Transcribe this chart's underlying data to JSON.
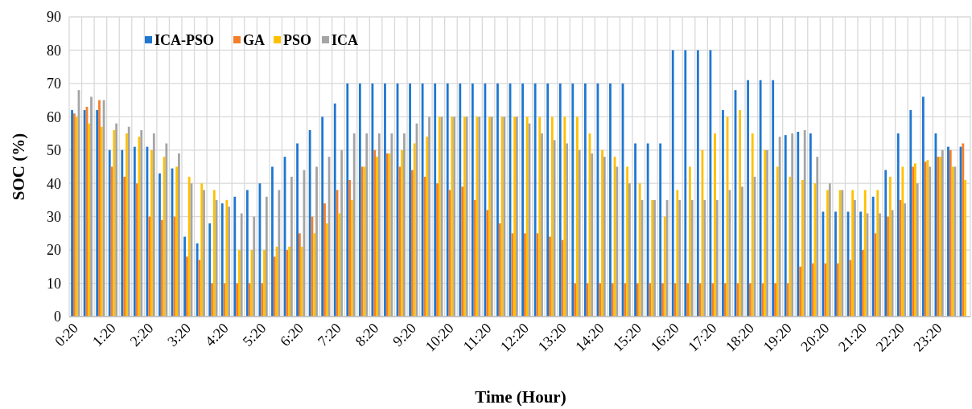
{
  "chart_data": {
    "type": "bar",
    "xlabel": "Time (Hour)",
    "ylabel": "SOC (%)",
    "categories": [
      "0:20",
      null,
      null,
      "1:20",
      null,
      null,
      "2:20",
      null,
      null,
      "3:20",
      null,
      null,
      "4:20",
      null,
      null,
      "5:20",
      null,
      null,
      "6:20",
      null,
      null,
      "7:20",
      null,
      null,
      "8:20",
      null,
      null,
      "9:20",
      null,
      null,
      "10:20",
      null,
      null,
      "11:20",
      null,
      null,
      "12:20",
      null,
      null,
      "13:20",
      null,
      null,
      "14:20",
      null,
      null,
      "15:20",
      null,
      null,
      "16:20",
      null,
      null,
      "17:20",
      null,
      null,
      "18:20",
      null,
      null,
      "19:20",
      null,
      null,
      "20:20",
      null,
      null,
      "21:20",
      null,
      null,
      "22:20",
      null,
      null,
      "23:20",
      null,
      null
    ],
    "series": [
      {
        "name": "ICA-PSO",
        "color": "#1f77d0",
        "values": [
          62,
          62,
          62,
          50,
          50,
          51,
          51,
          43,
          44.5,
          24,
          22,
          28,
          34,
          36,
          38,
          40,
          45,
          48,
          52,
          56,
          60,
          64,
          70,
          70,
          70,
          70,
          70,
          70,
          70,
          70,
          70,
          70,
          70,
          70,
          70,
          70,
          70,
          70,
          70,
          70,
          70,
          70,
          70,
          70,
          70,
          52,
          52,
          52,
          80,
          80,
          80,
          80,
          62,
          68,
          71,
          71,
          71,
          54.5,
          55.5,
          55,
          31.5,
          31.5,
          31.5,
          31.5,
          36,
          44,
          55,
          62,
          66,
          55,
          51,
          51
        ]
      },
      {
        "name": "GA",
        "color": "#f47f2a",
        "values": [
          61,
          63,
          65,
          45,
          42,
          40,
          30,
          29,
          30,
          18,
          17,
          10,
          10,
          10,
          10,
          10,
          18,
          20,
          25,
          30,
          34,
          38,
          41,
          45,
          50,
          49,
          45,
          44,
          42,
          40,
          38,
          39,
          35,
          32,
          28,
          25,
          25,
          25,
          24,
          23,
          10,
          10,
          10,
          10,
          10,
          10,
          10,
          10,
          10,
          10,
          10,
          10,
          10,
          10,
          10,
          10,
          10,
          10,
          15,
          16,
          16,
          16,
          17,
          20,
          25,
          30,
          35,
          45,
          46.5,
          48,
          50,
          52
        ]
      },
      {
        "name": "PSO",
        "color": "#ffc000",
        "values": [
          60,
          58,
          57,
          56,
          55,
          54,
          50,
          48,
          45,
          42,
          40,
          38,
          35,
          20,
          20,
          20,
          21,
          21,
          21,
          25,
          28,
          31,
          35,
          45,
          48,
          49,
          50,
          52,
          54,
          60,
          60,
          60,
          60,
          60,
          60,
          60,
          60,
          60,
          60,
          60,
          60,
          55,
          50,
          48,
          45,
          40,
          35,
          30,
          38,
          45,
          50,
          55,
          60,
          62,
          55,
          50,
          45,
          42,
          41,
          40,
          38,
          38,
          38,
          38,
          38,
          42,
          45,
          46,
          47,
          48,
          45,
          41
        ]
      },
      {
        "name": "ICA",
        "color": "#a5a5a5",
        "values": [
          68,
          66,
          65,
          58,
          57,
          56,
          55,
          52,
          49,
          40,
          38,
          35,
          33,
          31,
          30,
          36,
          38,
          42,
          44,
          45,
          48,
          50,
          55,
          55,
          55,
          55,
          55,
          58,
          60,
          60,
          60,
          60,
          60,
          60,
          60,
          60,
          58,
          55,
          53,
          52,
          50,
          49,
          48,
          45,
          40,
          35,
          35,
          35,
          35,
          35,
          35,
          35,
          38,
          39,
          42,
          50,
          54,
          55,
          56,
          48,
          40,
          38,
          35,
          31,
          31,
          32,
          34,
          40,
          45,
          50,
          45,
          null
        ]
      }
    ],
    "ylim": [
      0,
      90
    ],
    "yticks": [
      0,
      10,
      20,
      30,
      40,
      50,
      60,
      70,
      80,
      90
    ],
    "grid": true,
    "legend": "top left"
  }
}
